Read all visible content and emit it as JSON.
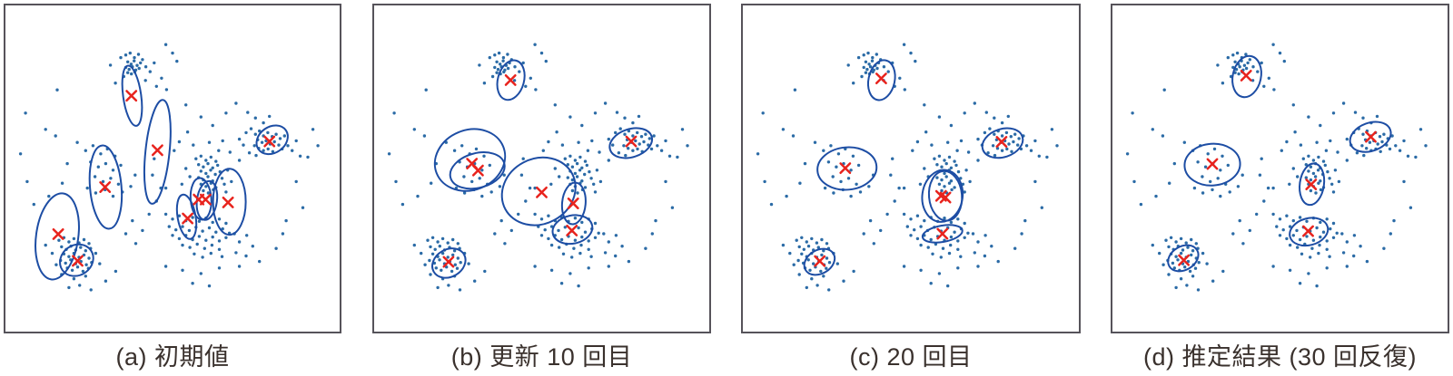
{
  "figure": {
    "kind": "four-panel scatter figure (GMM / EM iterations)",
    "background": "#ffffff"
  },
  "chart_data": {
    "type": "scatter",
    "legend": "none",
    "axes": "none (plain square frame, no ticks or labels)",
    "style": {
      "point_color": "#2b6ba6",
      "point_radius": 1.7,
      "ellipse_color": "#1d4da4",
      "ellipse_width": 2,
      "cross_color": "#e8231d",
      "cross_half": 5.2,
      "cross_width": 2.5,
      "frame_color": "#56535a",
      "caption_color": "#3a312d"
    },
    "points": [
      [
        0.345,
        0.16
      ],
      [
        0.36,
        0.152
      ],
      [
        0.373,
        0.146
      ],
      [
        0.386,
        0.16
      ],
      [
        0.398,
        0.15
      ],
      [
        0.41,
        0.166
      ],
      [
        0.366,
        0.173
      ],
      [
        0.376,
        0.18
      ],
      [
        0.385,
        0.17
      ],
      [
        0.394,
        0.184
      ],
      [
        0.404,
        0.176
      ],
      [
        0.36,
        0.19
      ],
      [
        0.37,
        0.196
      ],
      [
        0.38,
        0.188
      ],
      [
        0.39,
        0.198
      ],
      [
        0.4,
        0.193
      ],
      [
        0.366,
        0.206
      ],
      [
        0.377,
        0.21
      ],
      [
        0.387,
        0.204
      ],
      [
        0.354,
        0.218
      ],
      [
        0.42,
        0.188
      ],
      [
        0.433,
        0.203
      ],
      [
        0.445,
        0.176
      ],
      [
        0.314,
        0.183
      ],
      [
        0.329,
        0.238
      ],
      [
        0.419,
        0.23
      ],
      [
        0.452,
        0.248
      ],
      [
        0.467,
        0.223
      ],
      [
        0.482,
        0.258
      ],
      [
        0.5,
        0.146
      ],
      [
        0.513,
        0.171
      ],
      [
        0.155,
        0.259
      ],
      [
        0.72,
        0.39
      ],
      [
        0.735,
        0.378
      ],
      [
        0.748,
        0.395
      ],
      [
        0.76,
        0.385
      ],
      [
        0.772,
        0.4
      ],
      [
        0.785,
        0.39
      ],
      [
        0.798,
        0.402
      ],
      [
        0.81,
        0.395
      ],
      [
        0.822,
        0.408
      ],
      [
        0.835,
        0.4
      ],
      [
        0.755,
        0.412
      ],
      [
        0.768,
        0.42
      ],
      [
        0.78,
        0.415
      ],
      [
        0.792,
        0.425
      ],
      [
        0.805,
        0.418
      ],
      [
        0.818,
        0.428
      ],
      [
        0.745,
        0.43
      ],
      [
        0.758,
        0.438
      ],
      [
        0.772,
        0.445
      ],
      [
        0.786,
        0.44
      ],
      [
        0.8,
        0.448
      ],
      [
        0.828,
        0.44
      ],
      [
        0.845,
        0.43
      ],
      [
        0.858,
        0.445
      ],
      [
        0.7,
        0.41
      ],
      [
        0.712,
        0.428
      ],
      [
        0.73,
        0.452
      ],
      [
        0.75,
        0.46
      ],
      [
        0.87,
        0.415
      ],
      [
        0.882,
        0.462
      ],
      [
        0.772,
        0.36
      ],
      [
        0.748,
        0.345
      ],
      [
        0.725,
        0.328
      ],
      [
        0.79,
        0.34
      ],
      [
        0.215,
        0.42
      ],
      [
        0.24,
        0.445
      ],
      [
        0.262,
        0.43
      ],
      [
        0.285,
        0.455
      ],
      [
        0.305,
        0.44
      ],
      [
        0.328,
        0.462
      ],
      [
        0.255,
        0.48
      ],
      [
        0.278,
        0.495
      ],
      [
        0.3,
        0.485
      ],
      [
        0.322,
        0.505
      ],
      [
        0.345,
        0.49
      ],
      [
        0.268,
        0.525
      ],
      [
        0.292,
        0.54
      ],
      [
        0.315,
        0.53
      ],
      [
        0.338,
        0.548
      ],
      [
        0.245,
        0.56
      ],
      [
        0.27,
        0.575
      ],
      [
        0.298,
        0.565
      ],
      [
        0.322,
        0.585
      ],
      [
        0.35,
        0.572
      ],
      [
        0.375,
        0.555
      ],
      [
        0.388,
        0.52
      ],
      [
        0.045,
        0.455
      ],
      [
        0.065,
        0.54
      ],
      [
        0.12,
        0.38
      ],
      [
        0.15,
        0.4
      ],
      [
        0.085,
        0.61
      ],
      [
        0.13,
        0.585
      ],
      [
        0.17,
        0.545
      ],
      [
        0.185,
        0.485
      ],
      [
        0.16,
        0.72
      ],
      [
        0.175,
        0.712
      ],
      [
        0.19,
        0.725
      ],
      [
        0.205,
        0.715
      ],
      [
        0.22,
        0.728
      ],
      [
        0.235,
        0.718
      ],
      [
        0.25,
        0.73
      ],
      [
        0.168,
        0.74
      ],
      [
        0.182,
        0.748
      ],
      [
        0.196,
        0.738
      ],
      [
        0.21,
        0.75
      ],
      [
        0.225,
        0.742
      ],
      [
        0.24,
        0.752
      ],
      [
        0.255,
        0.745
      ],
      [
        0.175,
        0.762
      ],
      [
        0.19,
        0.77
      ],
      [
        0.205,
        0.76
      ],
      [
        0.22,
        0.772
      ],
      [
        0.235,
        0.765
      ],
      [
        0.25,
        0.775
      ],
      [
        0.165,
        0.782
      ],
      [
        0.18,
        0.79
      ],
      [
        0.195,
        0.78
      ],
      [
        0.21,
        0.792
      ],
      [
        0.226,
        0.785
      ],
      [
        0.242,
        0.795
      ],
      [
        0.258,
        0.788
      ],
      [
        0.185,
        0.805
      ],
      [
        0.2,
        0.812
      ],
      [
        0.216,
        0.802
      ],
      [
        0.232,
        0.815
      ],
      [
        0.248,
        0.806
      ],
      [
        0.14,
        0.76
      ],
      [
        0.152,
        0.795
      ],
      [
        0.168,
        0.825
      ],
      [
        0.205,
        0.838
      ],
      [
        0.24,
        0.83
      ],
      [
        0.27,
        0.76
      ],
      [
        0.282,
        0.792
      ],
      [
        0.12,
        0.735
      ],
      [
        0.19,
        0.865
      ],
      [
        0.222,
        0.858
      ],
      [
        0.256,
        0.872
      ],
      [
        0.3,
        0.845
      ],
      [
        0.33,
        0.815
      ],
      [
        0.57,
        0.47
      ],
      [
        0.585,
        0.462
      ],
      [
        0.6,
        0.475
      ],
      [
        0.615,
        0.465
      ],
      [
        0.63,
        0.478
      ],
      [
        0.578,
        0.488
      ],
      [
        0.592,
        0.495
      ],
      [
        0.606,
        0.485
      ],
      [
        0.62,
        0.498
      ],
      [
        0.635,
        0.49
      ],
      [
        0.585,
        0.508
      ],
      [
        0.6,
        0.515
      ],
      [
        0.614,
        0.505
      ],
      [
        0.628,
        0.518
      ],
      [
        0.642,
        0.51
      ],
      [
        0.578,
        0.528
      ],
      [
        0.592,
        0.535
      ],
      [
        0.606,
        0.525
      ],
      [
        0.62,
        0.538
      ],
      [
        0.648,
        0.53
      ],
      [
        0.585,
        0.548
      ],
      [
        0.6,
        0.555
      ],
      [
        0.615,
        0.545
      ],
      [
        0.63,
        0.558
      ],
      [
        0.655,
        0.548
      ],
      [
        0.592,
        0.568
      ],
      [
        0.607,
        0.575
      ],
      [
        0.622,
        0.565
      ],
      [
        0.54,
        0.5
      ],
      [
        0.552,
        0.525
      ],
      [
        0.528,
        0.548
      ],
      [
        0.665,
        0.505
      ],
      [
        0.66,
        0.572
      ],
      [
        0.676,
        0.54
      ],
      [
        0.48,
        0.64
      ],
      [
        0.5,
        0.655
      ],
      [
        0.52,
        0.645
      ],
      [
        0.54,
        0.66
      ],
      [
        0.56,
        0.65
      ],
      [
        0.58,
        0.662
      ],
      [
        0.6,
        0.652
      ],
      [
        0.62,
        0.665
      ],
      [
        0.64,
        0.655
      ],
      [
        0.66,
        0.668
      ],
      [
        0.49,
        0.678
      ],
      [
        0.51,
        0.688
      ],
      [
        0.53,
        0.678
      ],
      [
        0.55,
        0.69
      ],
      [
        0.57,
        0.68
      ],
      [
        0.59,
        0.692
      ],
      [
        0.61,
        0.682
      ],
      [
        0.63,
        0.695
      ],
      [
        0.65,
        0.685
      ],
      [
        0.67,
        0.698
      ],
      [
        0.5,
        0.705
      ],
      [
        0.52,
        0.715
      ],
      [
        0.54,
        0.705
      ],
      [
        0.56,
        0.718
      ],
      [
        0.58,
        0.708
      ],
      [
        0.6,
        0.72
      ],
      [
        0.62,
        0.71
      ],
      [
        0.64,
        0.722
      ],
      [
        0.66,
        0.712
      ],
      [
        0.685,
        0.7
      ],
      [
        0.53,
        0.735
      ],
      [
        0.552,
        0.742
      ],
      [
        0.574,
        0.732
      ],
      [
        0.596,
        0.745
      ],
      [
        0.618,
        0.735
      ],
      [
        0.64,
        0.748
      ],
      [
        0.7,
        0.725
      ],
      [
        0.722,
        0.705
      ],
      [
        0.74,
        0.738
      ],
      [
        0.565,
        0.762
      ],
      [
        0.59,
        0.772
      ],
      [
        0.615,
        0.76
      ],
      [
        0.648,
        0.77
      ],
      [
        0.69,
        0.758
      ],
      [
        0.72,
        0.768
      ],
      [
        0.48,
        0.8
      ],
      [
        0.53,
        0.812
      ],
      [
        0.585,
        0.822
      ],
      [
        0.64,
        0.805
      ],
      [
        0.7,
        0.8
      ],
      [
        0.76,
        0.785
      ],
      [
        0.81,
        0.745
      ],
      [
        0.83,
        0.7
      ],
      [
        0.56,
        0.852
      ],
      [
        0.61,
        0.86
      ],
      [
        0.44,
        0.52
      ],
      [
        0.465,
        0.56
      ],
      [
        0.452,
        0.6
      ],
      [
        0.43,
        0.64
      ],
      [
        0.41,
        0.69
      ],
      [
        0.445,
        0.47
      ],
      [
        0.505,
        0.445
      ],
      [
        0.52,
        0.418
      ],
      [
        0.545,
        0.388
      ],
      [
        0.562,
        0.428
      ],
      [
        0.61,
        0.42
      ],
      [
        0.638,
        0.445
      ],
      [
        0.65,
        0.415
      ],
      [
        0.672,
        0.45
      ],
      [
        0.7,
        0.475
      ],
      [
        0.54,
        0.305
      ],
      [
        0.585,
        0.342
      ],
      [
        0.62,
        0.368
      ],
      [
        0.66,
        0.33
      ],
      [
        0.69,
        0.3
      ],
      [
        0.06,
        0.33
      ],
      [
        0.48,
        0.12
      ],
      [
        0.87,
        0.54
      ],
      [
        0.89,
        0.62
      ],
      [
        0.84,
        0.66
      ],
      [
        0.92,
        0.38
      ],
      [
        0.935,
        0.43
      ],
      [
        0.905,
        0.465
      ],
      [
        0.38,
        0.66
      ],
      [
        0.36,
        0.7
      ],
      [
        0.39,
        0.73
      ],
      [
        0.48,
        0.56
      ]
    ],
    "panels": [
      {
        "id": "a",
        "caption": "(a) 初期値",
        "centers": [
          [
            0.377,
            0.277
          ],
          [
            0.455,
            0.444
          ],
          [
            0.298,
            0.557
          ],
          [
            0.79,
            0.417
          ],
          [
            0.578,
            0.595
          ],
          [
            0.599,
            0.595
          ],
          [
            0.666,
            0.604
          ],
          [
            0.545,
            0.653
          ],
          [
            0.158,
            0.701
          ],
          [
            0.216,
            0.783
          ]
        ],
        "ellipses": [
          {
            "cx": 0.379,
            "cy": 0.277,
            "rx": 0.027,
            "ry": 0.093,
            "rot": -8
          },
          {
            "cx": 0.455,
            "cy": 0.449,
            "rx": 0.036,
            "ry": 0.16,
            "rot": 6
          },
          {
            "cx": 0.3,
            "cy": 0.557,
            "rx": 0.047,
            "ry": 0.128,
            "rot": -5
          },
          {
            "cx": 0.798,
            "cy": 0.412,
            "rx": 0.05,
            "ry": 0.04,
            "rot": -35
          },
          {
            "cx": 0.585,
            "cy": 0.593,
            "rx": 0.031,
            "ry": 0.064,
            "rot": -4
          },
          {
            "cx": 0.603,
            "cy": 0.598,
            "rx": 0.03,
            "ry": 0.06,
            "rot": 8
          },
          {
            "cx": 0.67,
            "cy": 0.602,
            "rx": 0.049,
            "ry": 0.101,
            "rot": 0
          },
          {
            "cx": 0.542,
            "cy": 0.648,
            "rx": 0.027,
            "ry": 0.069,
            "rot": -10
          },
          {
            "cx": 0.155,
            "cy": 0.708,
            "rx": 0.063,
            "ry": 0.133,
            "rot": 8
          },
          {
            "cx": 0.213,
            "cy": 0.781,
            "rx": 0.052,
            "ry": 0.046,
            "rot": -35
          }
        ]
      },
      {
        "id": "b",
        "caption": "(b) 更新 10 回目",
        "centers": [
          [
            0.407,
            0.229
          ],
          [
            0.292,
            0.485
          ],
          [
            0.31,
            0.506
          ],
          [
            0.5,
            0.573
          ],
          [
            0.594,
            0.607
          ],
          [
            0.59,
            0.69
          ],
          [
            0.767,
            0.417
          ],
          [
            0.222,
            0.786
          ]
        ],
        "ellipses": [
          {
            "cx": 0.408,
            "cy": 0.229,
            "rx": 0.039,
            "ry": 0.062,
            "rot": 15
          },
          {
            "cx": 0.286,
            "cy": 0.474,
            "rx": 0.107,
            "ry": 0.092,
            "rot": -22
          },
          {
            "cx": 0.308,
            "cy": 0.506,
            "rx": 0.083,
            "ry": 0.053,
            "rot": -15
          },
          {
            "cx": 0.491,
            "cy": 0.57,
            "rx": 0.113,
            "ry": 0.1,
            "rot": -28
          },
          {
            "cx": 0.596,
            "cy": 0.607,
            "rx": 0.035,
            "ry": 0.064,
            "rot": 5
          },
          {
            "cx": 0.592,
            "cy": 0.687,
            "rx": 0.06,
            "ry": 0.043,
            "rot": -12
          },
          {
            "cx": 0.766,
            "cy": 0.422,
            "rx": 0.065,
            "ry": 0.043,
            "rot": -18
          },
          {
            "cx": 0.223,
            "cy": 0.79,
            "rx": 0.052,
            "ry": 0.042,
            "rot": -30
          }
        ]
      },
      {
        "id": "c",
        "caption": "(c) 20 回目",
        "centers": [
          [
            0.412,
            0.224
          ],
          [
            0.305,
            0.499
          ],
          [
            0.59,
            0.584
          ],
          [
            0.603,
            0.589
          ],
          [
            0.594,
            0.7
          ],
          [
            0.77,
            0.418
          ],
          [
            0.229,
            0.784
          ]
        ],
        "ellipses": [
          {
            "cx": 0.413,
            "cy": 0.229,
            "rx": 0.039,
            "ry": 0.062,
            "rot": 12
          },
          {
            "cx": 0.31,
            "cy": 0.5,
            "rx": 0.088,
            "ry": 0.065,
            "rot": -5
          },
          {
            "cx": 0.594,
            "cy": 0.584,
            "rx": 0.06,
            "ry": 0.08,
            "rot": 8
          },
          {
            "cx": 0.603,
            "cy": 0.584,
            "rx": 0.049,
            "ry": 0.076,
            "rot": -5
          },
          {
            "cx": 0.594,
            "cy": 0.7,
            "rx": 0.06,
            "ry": 0.025,
            "rot": -10
          },
          {
            "cx": 0.773,
            "cy": 0.422,
            "rx": 0.062,
            "ry": 0.043,
            "rot": -18
          },
          {
            "cx": 0.228,
            "cy": 0.786,
            "rx": 0.048,
            "ry": 0.036,
            "rot": -30
          }
        ]
      },
      {
        "id": "d",
        "caption": "(d) 推定結果 (30 回反復)",
        "centers": [
          [
            0.399,
            0.215
          ],
          [
            0.298,
            0.486
          ],
          [
            0.593,
            0.549
          ],
          [
            0.584,
            0.692
          ],
          [
            0.771,
            0.403
          ],
          [
            0.213,
            0.781
          ]
        ],
        "ellipses": [
          {
            "cx": 0.401,
            "cy": 0.218,
            "rx": 0.042,
            "ry": 0.064,
            "rot": 12
          },
          {
            "cx": 0.298,
            "cy": 0.488,
            "rx": 0.083,
            "ry": 0.064,
            "rot": -4
          },
          {
            "cx": 0.595,
            "cy": 0.548,
            "rx": 0.036,
            "ry": 0.064,
            "rot": 8
          },
          {
            "cx": 0.586,
            "cy": 0.694,
            "rx": 0.058,
            "ry": 0.041,
            "rot": -15
          },
          {
            "cx": 0.77,
            "cy": 0.403,
            "rx": 0.063,
            "ry": 0.043,
            "rot": -20
          },
          {
            "cx": 0.211,
            "cy": 0.775,
            "rx": 0.048,
            "ry": 0.036,
            "rot": -30
          }
        ]
      }
    ]
  }
}
